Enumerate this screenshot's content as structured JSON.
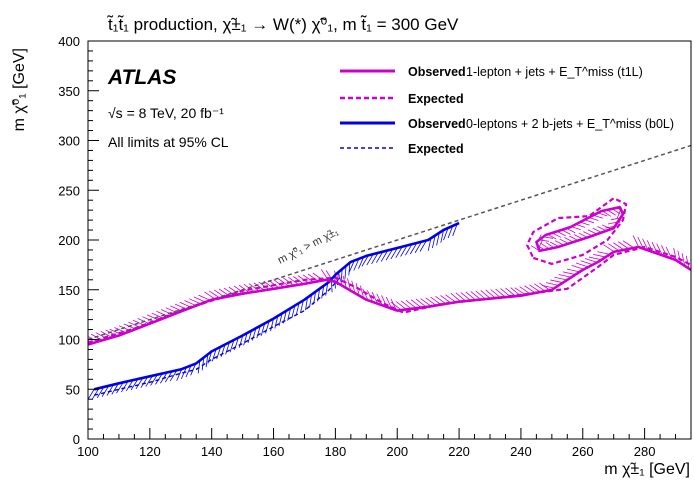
{
  "header": {
    "title": "t̃₁t̃₁ production, χ̃±₁ → W(*) χ̃⁰₁, m t̃₁ = 300 GeV"
  },
  "annotations": {
    "experiment": "ATLAS",
    "energy": "√s = 8 TeV, 20 fb⁻¹",
    "cl_note": "All limits at 95% CL",
    "diagonal_label": "m χ̃⁰₁ > m χ̃±₁"
  },
  "legend": {
    "placement": "top-right",
    "entries": [
      {
        "bold": "Observed",
        "text": "1-lepton + jets + E_T^miss (t1L)",
        "color": "#cc00cc",
        "dash": "solid"
      },
      {
        "bold": "Expected",
        "text": "",
        "color": "#cc00cc",
        "dash": "dashed"
      },
      {
        "bold": "Observed",
        "text": "0-leptons + 2 b-jets + E_T^miss (b0L)",
        "color": "#0000e6",
        "dash": "solid"
      },
      {
        "bold": "Expected",
        "text": "",
        "color": "#0000e6",
        "dash": "dashed"
      }
    ]
  },
  "chart_data": {
    "type": "line",
    "title": "t̃₁t̃₁ production, χ̃±₁ → W(*) χ̃⁰₁, m t̃₁ = 300 GeV",
    "xlabel": "m χ̃±₁ [GeV]",
    "ylabel": "m χ̃⁰₁ [GeV]",
    "xlim": [
      100,
      295
    ],
    "ylim": [
      0,
      400
    ],
    "xticks": [
      100,
      120,
      140,
      160,
      180,
      200,
      220,
      240,
      260,
      280
    ],
    "yticks": [
      0,
      50,
      100,
      150,
      200,
      250,
      300,
      350,
      400
    ],
    "colors": {
      "t1L": "#cc00cc",
      "b0L": "#0000e6",
      "diagonal": "#555555"
    },
    "series": [
      {
        "name": "Observed 1-lepton + jets + E_T^miss (t1L)",
        "key": "t1L_obs",
        "color": "#cc00cc",
        "dash": "solid",
        "width": 2.6,
        "x": [
          100,
          110,
          115,
          130,
          140,
          150,
          160,
          170,
          177,
          180,
          190,
          200,
          210,
          220,
          240,
          250,
          260,
          265,
          270,
          278,
          290,
          295
        ],
        "y": [
          95,
          104,
          110,
          128,
          140,
          146,
          151,
          156,
          160,
          158,
          140,
          129,
          133,
          138,
          144,
          150,
          170,
          178,
          188,
          193,
          180,
          170
        ]
      },
      {
        "name": "Expected t1L",
        "key": "t1L_exp",
        "color": "#cc00cc",
        "dash": "dashed",
        "width": 2.2,
        "x": [
          100,
          115,
          130,
          150,
          170,
          180,
          187,
          195,
          202,
          215,
          235,
          255,
          265,
          270,
          280,
          290,
          295
        ],
        "y": [
          97,
          111,
          129,
          149,
          160,
          162,
          152,
          137,
          127,
          136,
          143,
          151,
          173,
          185,
          193,
          183,
          175
        ]
      },
      {
        "name": "Expected t1L island",
        "key": "t1L_exp_island",
        "color": "#cc00cc",
        "dash": "dashed",
        "width": 2.2,
        "closed": true,
        "x": [
          244,
          250,
          260,
          268,
          273,
          274,
          270,
          262,
          252,
          244,
          242
        ],
        "y": [
          182,
          176,
          185,
          200,
          220,
          236,
          242,
          224,
          222,
          208,
          195
        ]
      },
      {
        "name": "Observed t1L island",
        "key": "t1L_obs_island",
        "color": "#cc00cc",
        "dash": "solid",
        "width": 2.6,
        "closed": true,
        "x": [
          246,
          252,
          262,
          270,
          273,
          272,
          266,
          256,
          248,
          245
        ],
        "y": [
          189,
          193,
          203,
          212,
          226,
          233,
          229,
          213,
          205,
          198
        ]
      },
      {
        "name": "Observed 0-leptons + 2 b-jets + E_T^miss (b0L)",
        "key": "b0L_obs",
        "color": "#0000e6",
        "dash": "solid",
        "width": 2.6,
        "x": [
          102,
          110,
          120,
          130,
          135,
          140,
          150,
          160,
          170,
          178,
          180,
          185,
          190,
          200,
          210,
          215,
          220
        ],
        "y": [
          50,
          56,
          63,
          70,
          76,
          88,
          104,
          121,
          140,
          158,
          165,
          178,
          184,
          192,
          200,
          210,
          217
        ]
      },
      {
        "name": "Expected b0L",
        "key": "b0L_exp",
        "color": "#0000e6",
        "dash": "dashed",
        "width": 1.4,
        "x": [
          102,
          110,
          120,
          130,
          135,
          140,
          150,
          160,
          170,
          178,
          182
        ],
        "y": [
          44,
          50,
          57,
          66,
          70,
          80,
          96,
          113,
          129,
          150,
          164
        ]
      },
      {
        "name": "m χ̃⁰₁ = m χ̃±₁ diagonal",
        "key": "diagonal",
        "color": "#555555",
        "dash": "dashed",
        "width": 1.5,
        "x": [
          100,
          295
        ],
        "y": [
          100,
          295
        ]
      }
    ]
  }
}
